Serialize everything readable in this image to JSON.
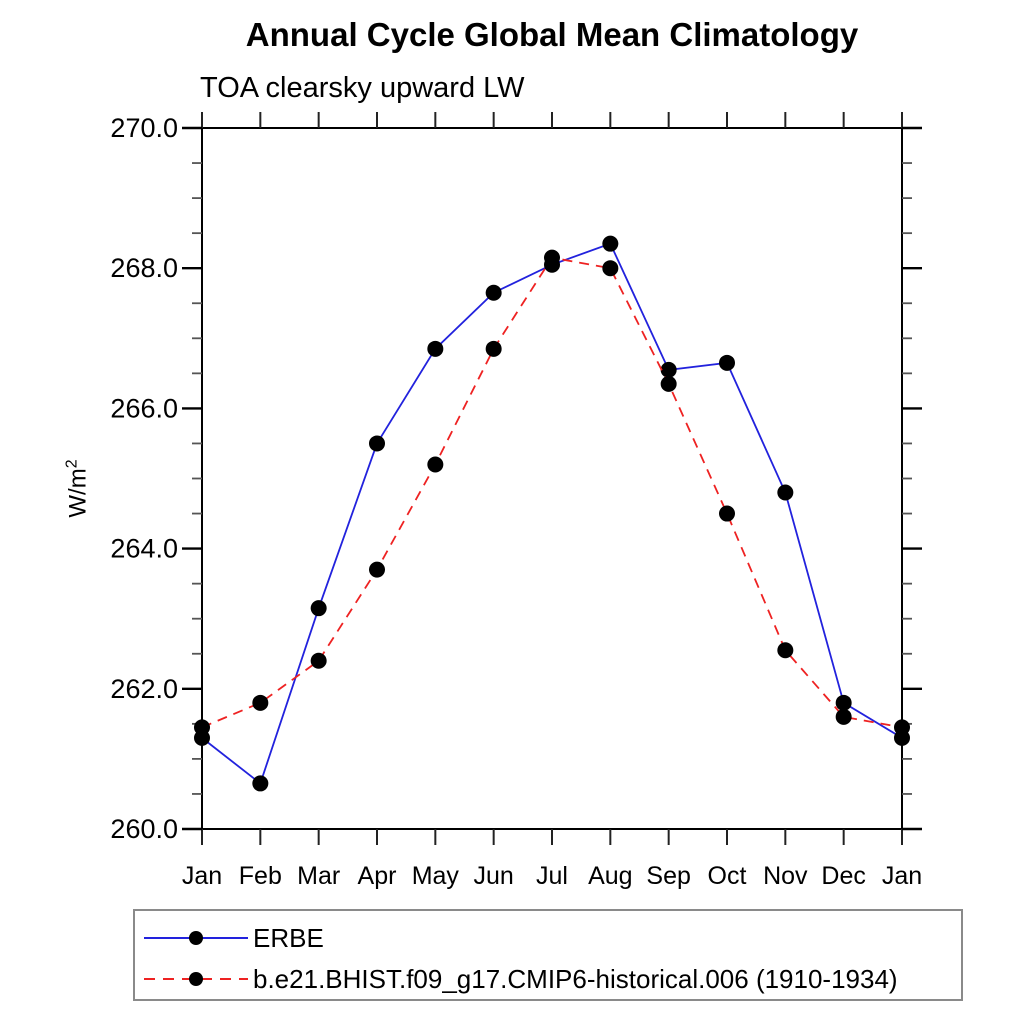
{
  "chart_data": {
    "type": "line",
    "title": "Annual Cycle Global Mean Climatology",
    "subtitle": "TOA clearsky upward LW",
    "ylabel_base": "W/m",
    "ylabel_exponent": "2",
    "x_tick_labels": [
      "Jan",
      "Feb",
      "Mar",
      "Apr",
      "May",
      "Jun",
      "Jul",
      "Aug",
      "Sep",
      "Oct",
      "Nov",
      "Dec",
      "Jan"
    ],
    "ylim": [
      260.0,
      270.0
    ],
    "y_major_ticks": [
      260.0,
      262.0,
      264.0,
      266.0,
      268.0,
      270.0
    ],
    "y_major_tick_labels": [
      "260.0",
      "262.0",
      "264.0",
      "266.0",
      "268.0",
      "270.0"
    ],
    "y_minor_step": 0.5,
    "grid": false,
    "legend_position": "bottom-left-box",
    "marker": {
      "shape": "filled-circle",
      "color": "#000000",
      "radius_px": 8
    },
    "axis_color": "#000000",
    "series": [
      {
        "name": "ERBE",
        "color": "#2222dd",
        "line_style": "solid",
        "values": [
          261.3,
          260.65,
          263.15,
          265.5,
          266.85,
          267.65,
          268.05,
          268.35,
          266.55,
          266.65,
          264.8,
          261.8,
          261.3
        ]
      },
      {
        "name": "b.e21.BHIST.f09_g17.CMIP6-historical.006 (1910-1934)",
        "color": "#ee2222",
        "line_style": "dashed",
        "values": [
          261.45,
          261.8,
          262.4,
          263.7,
          265.2,
          266.85,
          268.15,
          268.0,
          266.35,
          264.5,
          262.55,
          261.6,
          261.45
        ]
      }
    ]
  }
}
